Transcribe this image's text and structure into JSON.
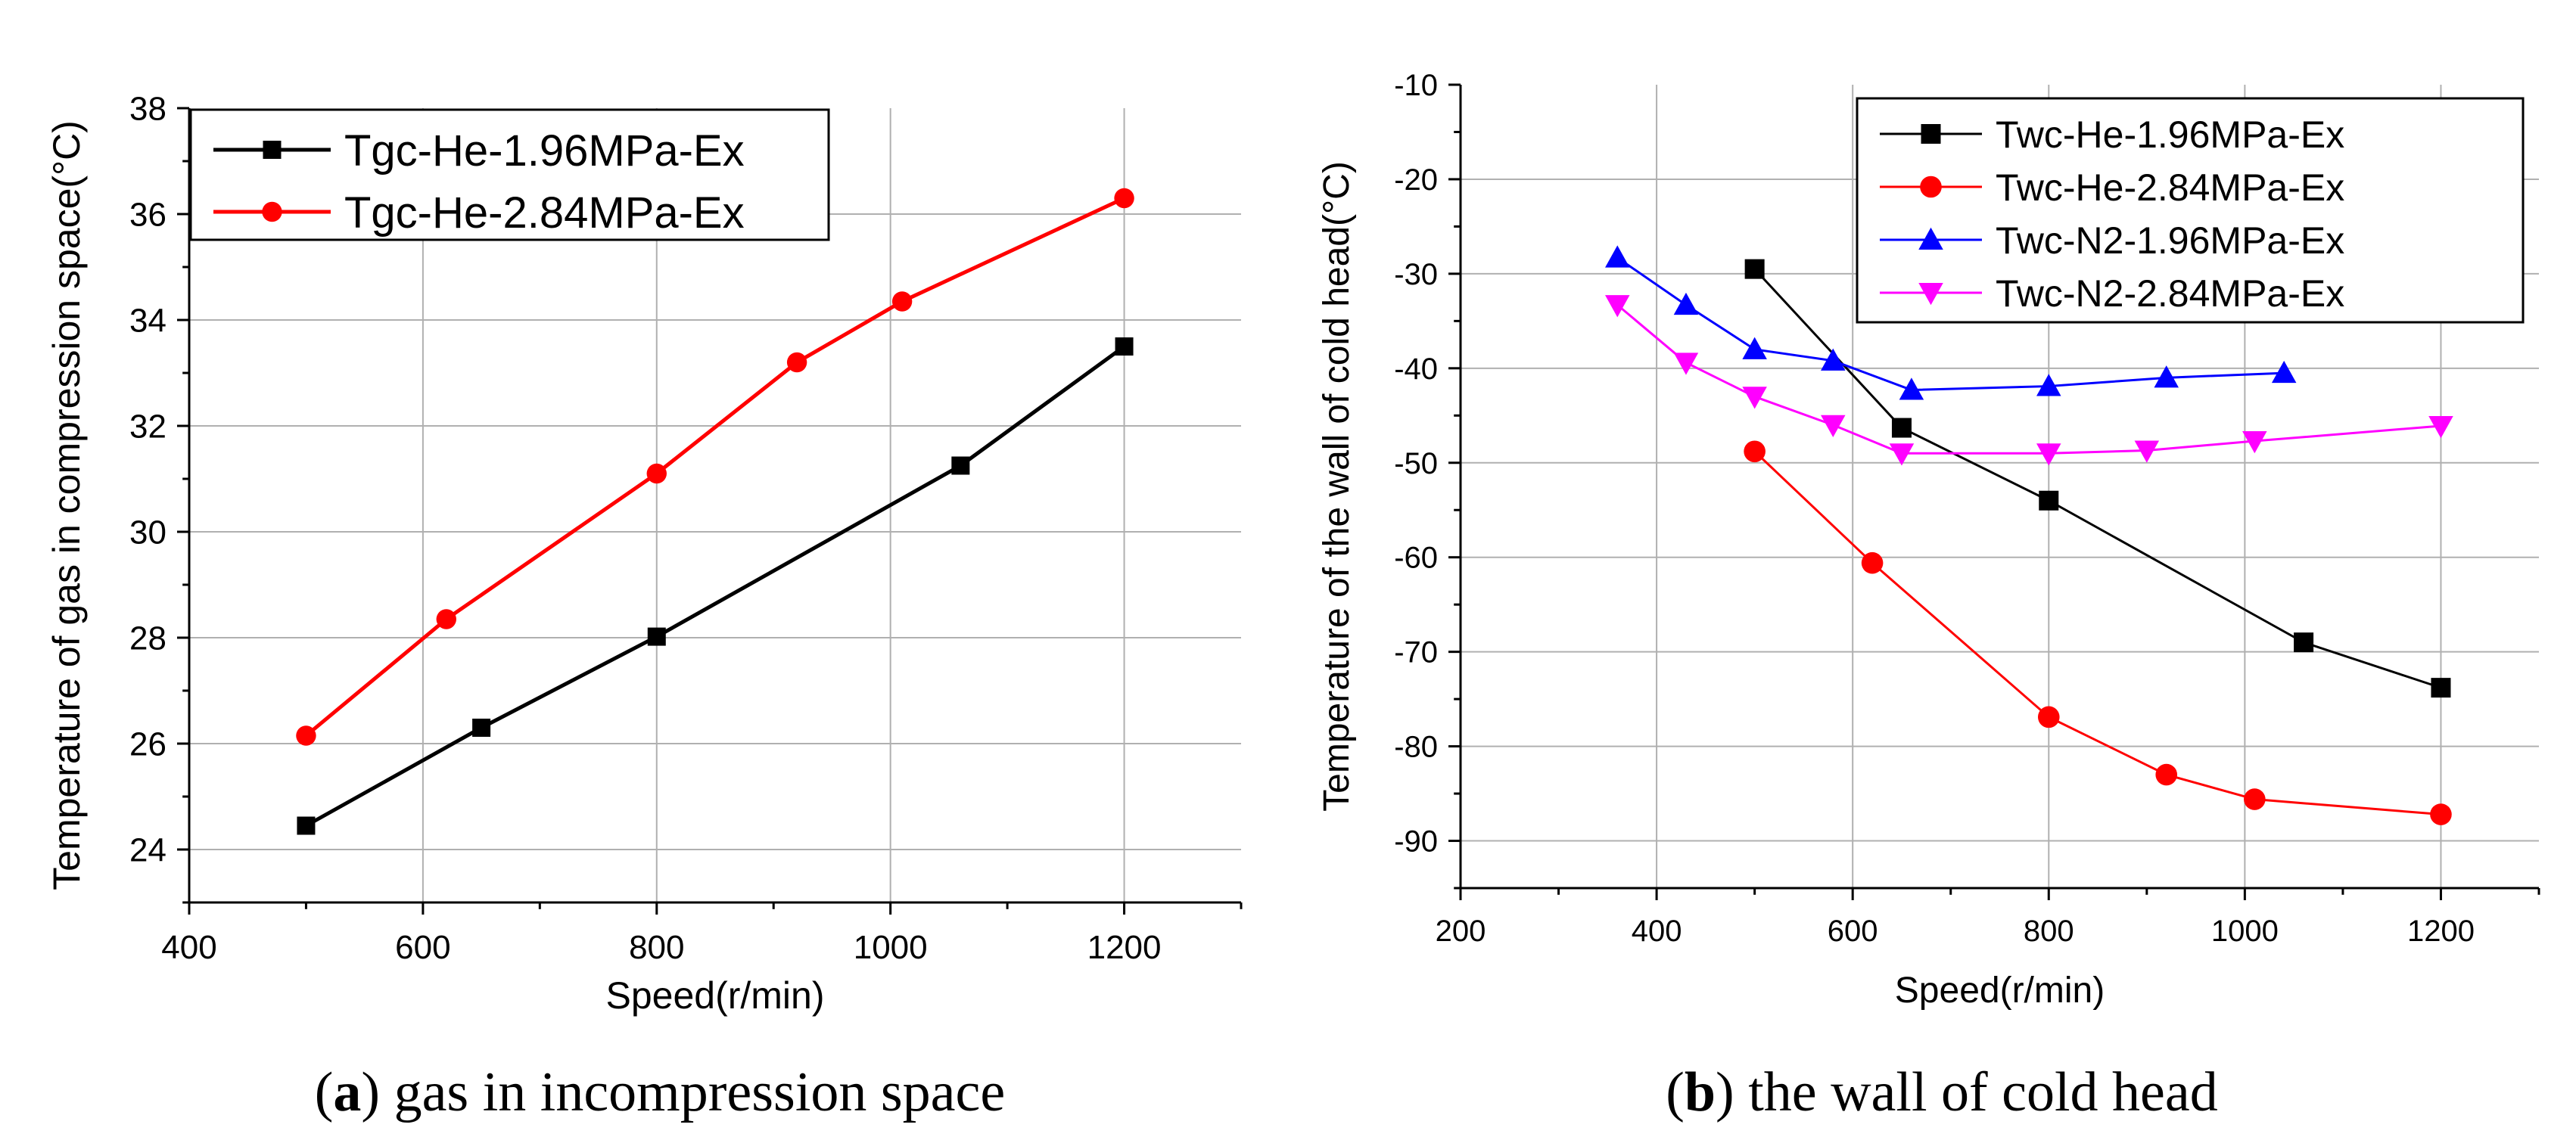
{
  "chart_data": [
    {
      "panel_id": "a",
      "type": "line",
      "xlabel": "Speed(r/min)",
      "ylabel": "Temperature of gas in compression space(°C)",
      "xlim": [
        400,
        1300
      ],
      "ylim": [
        23,
        38
      ],
      "xticks": [
        400,
        600,
        800,
        1000,
        1200
      ],
      "yticks": [
        24,
        26,
        28,
        30,
        32,
        34,
        36,
        38
      ],
      "grid": true,
      "legend_position": "top-left",
      "series": [
        {
          "name": "Tgc-He-1.96MPa-Ex",
          "color": "#000000",
          "marker": "square",
          "x": [
            500,
            650,
            800,
            1060,
            1200
          ],
          "y": [
            24.45,
            26.3,
            28.02,
            31.25,
            33.5
          ]
        },
        {
          "name": "Tgc-He-2.84MPa-Ex",
          "color": "#ff0000",
          "marker": "circle",
          "x": [
            500,
            620,
            800,
            920,
            1010,
            1200
          ],
          "y": [
            26.15,
            28.35,
            31.1,
            33.2,
            34.35,
            36.3
          ]
        }
      ],
      "caption": {
        "label": "a",
        "text": " gas in incompression space"
      }
    },
    {
      "panel_id": "b",
      "type": "line",
      "xlabel": "Speed(r/min)",
      "ylabel": "Temperature of the wall of cold head(°C)",
      "xlim": [
        200,
        1300
      ],
      "ylim": [
        -95,
        -10
      ],
      "xticks": [
        200,
        400,
        600,
        800,
        1000,
        1200
      ],
      "yticks": [
        -10,
        -20,
        -30,
        -40,
        -50,
        -60,
        -70,
        -80,
        -90
      ],
      "grid": true,
      "legend_position": "top-right",
      "series": [
        {
          "name": "Twc-He-1.96MPa-Ex",
          "color": "#000000",
          "marker": "square",
          "x": [
            500,
            650,
            800,
            1060,
            1200
          ],
          "y": [
            -29.5,
            -46.3,
            -54,
            -69,
            -73.8
          ]
        },
        {
          "name": "Twc-He-2.84MPa-Ex",
          "color": "#ff0000",
          "marker": "circle",
          "x": [
            500,
            620,
            800,
            920,
            1010,
            1200
          ],
          "y": [
            -48.8,
            -60.6,
            -76.9,
            -83,
            -85.6,
            -87.2
          ]
        },
        {
          "name": "Twc-N2-1.96MPa-Ex",
          "color": "#0000ff",
          "marker": "triangle-up",
          "x": [
            360,
            430,
            500,
            580,
            660,
            800,
            920,
            1040
          ],
          "y": [
            -28.3,
            -33.3,
            -38,
            -39.2,
            -42.3,
            -41.9,
            -41,
            -40.5
          ]
        },
        {
          "name": "Twc-N2-2.84MPa-Ex",
          "color": "#ff00ff",
          "marker": "triangle-down",
          "x": [
            360,
            430,
            500,
            580,
            650,
            800,
            900,
            1010,
            1200
          ],
          "y": [
            -33.3,
            -39.4,
            -43,
            -46,
            -49,
            -49,
            -48.7,
            -47.7,
            -46.1
          ]
        }
      ],
      "caption": {
        "label": "b",
        "text": " the wall of cold head"
      }
    }
  ]
}
